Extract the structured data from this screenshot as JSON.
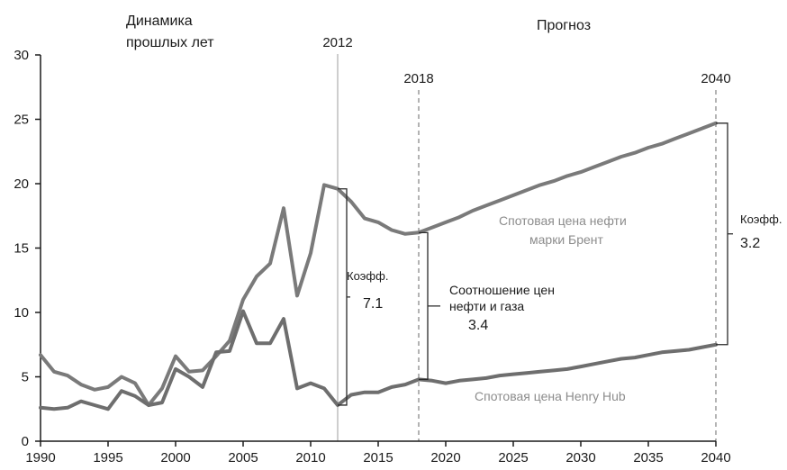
{
  "chart_data": {
    "type": "line",
    "title": "",
    "xlabel": "",
    "ylabel": "",
    "xlim": [
      1990,
      2040
    ],
    "ylim": [
      0,
      30
    ],
    "x_ticks": [
      1990,
      1995,
      2000,
      2005,
      2010,
      2015,
      2020,
      2025,
      2030,
      2035,
      2040
    ],
    "y_ticks": [
      0,
      5,
      10,
      15,
      20,
      25,
      30
    ],
    "grid": false,
    "legend": "none",
    "colors": {
      "brent": "#7a7a7a",
      "henry": "#6e6e6e",
      "axis": "#1a1a1a",
      "marker_2012": "#bdbdbd",
      "marker_dashed": "#9a9a9a"
    },
    "x": [
      1990,
      1991,
      1992,
      1993,
      1994,
      1995,
      1996,
      1997,
      1998,
      1999,
      2000,
      2001,
      2002,
      2003,
      2004,
      2005,
      2006,
      2007,
      2008,
      2009,
      2010,
      2011,
      2012,
      2013,
      2014,
      2015,
      2016,
      2017,
      2018,
      2019,
      2020,
      2021,
      2022,
      2023,
      2024,
      2025,
      2026,
      2027,
      2028,
      2029,
      2030,
      2031,
      2032,
      2033,
      2034,
      2035,
      2036,
      2037,
      2038,
      2039,
      2040
    ],
    "series": [
      {
        "key": "brent",
        "name": "Спотовая цена нефти марки Брент",
        "values": [
          6.7,
          5.4,
          5.1,
          4.4,
          4.0,
          4.2,
          5.0,
          4.5,
          2.8,
          4.1,
          6.6,
          5.4,
          5.5,
          6.6,
          7.8,
          11.0,
          12.8,
          13.8,
          18.1,
          11.3,
          14.6,
          19.9,
          19.6,
          18.6,
          17.3,
          17.0,
          16.4,
          16.1,
          16.2,
          16.6,
          17.0,
          17.4,
          17.9,
          18.3,
          18.7,
          19.1,
          19.5,
          19.9,
          20.2,
          20.6,
          20.9,
          21.3,
          21.7,
          22.1,
          22.4,
          22.8,
          23.1,
          23.5,
          23.9,
          24.3,
          24.7
        ]
      },
      {
        "key": "henry",
        "name": "Спотовая цена Henry Hub",
        "values": [
          2.6,
          2.5,
          2.6,
          3.1,
          2.8,
          2.5,
          3.9,
          3.5,
          2.8,
          3.0,
          5.6,
          5.0,
          4.2,
          6.9,
          7.0,
          10.1,
          7.6,
          7.6,
          9.5,
          4.1,
          4.5,
          4.1,
          2.8,
          3.6,
          3.8,
          3.8,
          4.2,
          4.4,
          4.8,
          4.7,
          4.5,
          4.7,
          4.8,
          4.9,
          5.1,
          5.2,
          5.3,
          5.4,
          5.5,
          5.6,
          5.8,
          6.0,
          6.2,
          6.4,
          6.5,
          6.7,
          6.9,
          7.0,
          7.1,
          7.3,
          7.5
        ]
      }
    ],
    "markers": [
      {
        "x": 2012,
        "label": "2012",
        "style": "solid"
      },
      {
        "x": 2018,
        "label": "2018",
        "style": "dashed"
      },
      {
        "x": 2040,
        "label": "2040",
        "style": "dashed"
      }
    ],
    "annotations": {
      "past_label_line1": "Динамика",
      "past_label_line2": "прошлых лет",
      "forecast_label": "Прогноз",
      "ratio_2012_label": "Коэфф.",
      "ratio_2012_value": "7.1",
      "ratio_2018_line1": "Соотношение цен",
      "ratio_2018_line2": "нефти и газа",
      "ratio_2018_value": "3.4",
      "ratio_2040_label": "Коэфф.",
      "ratio_2040_value": "3.2",
      "brent_label_line1": "Спотовая цена нефти",
      "brent_label_line2": "марки Брент",
      "henry_label": "Спотовая цена Henry Hub"
    }
  }
}
